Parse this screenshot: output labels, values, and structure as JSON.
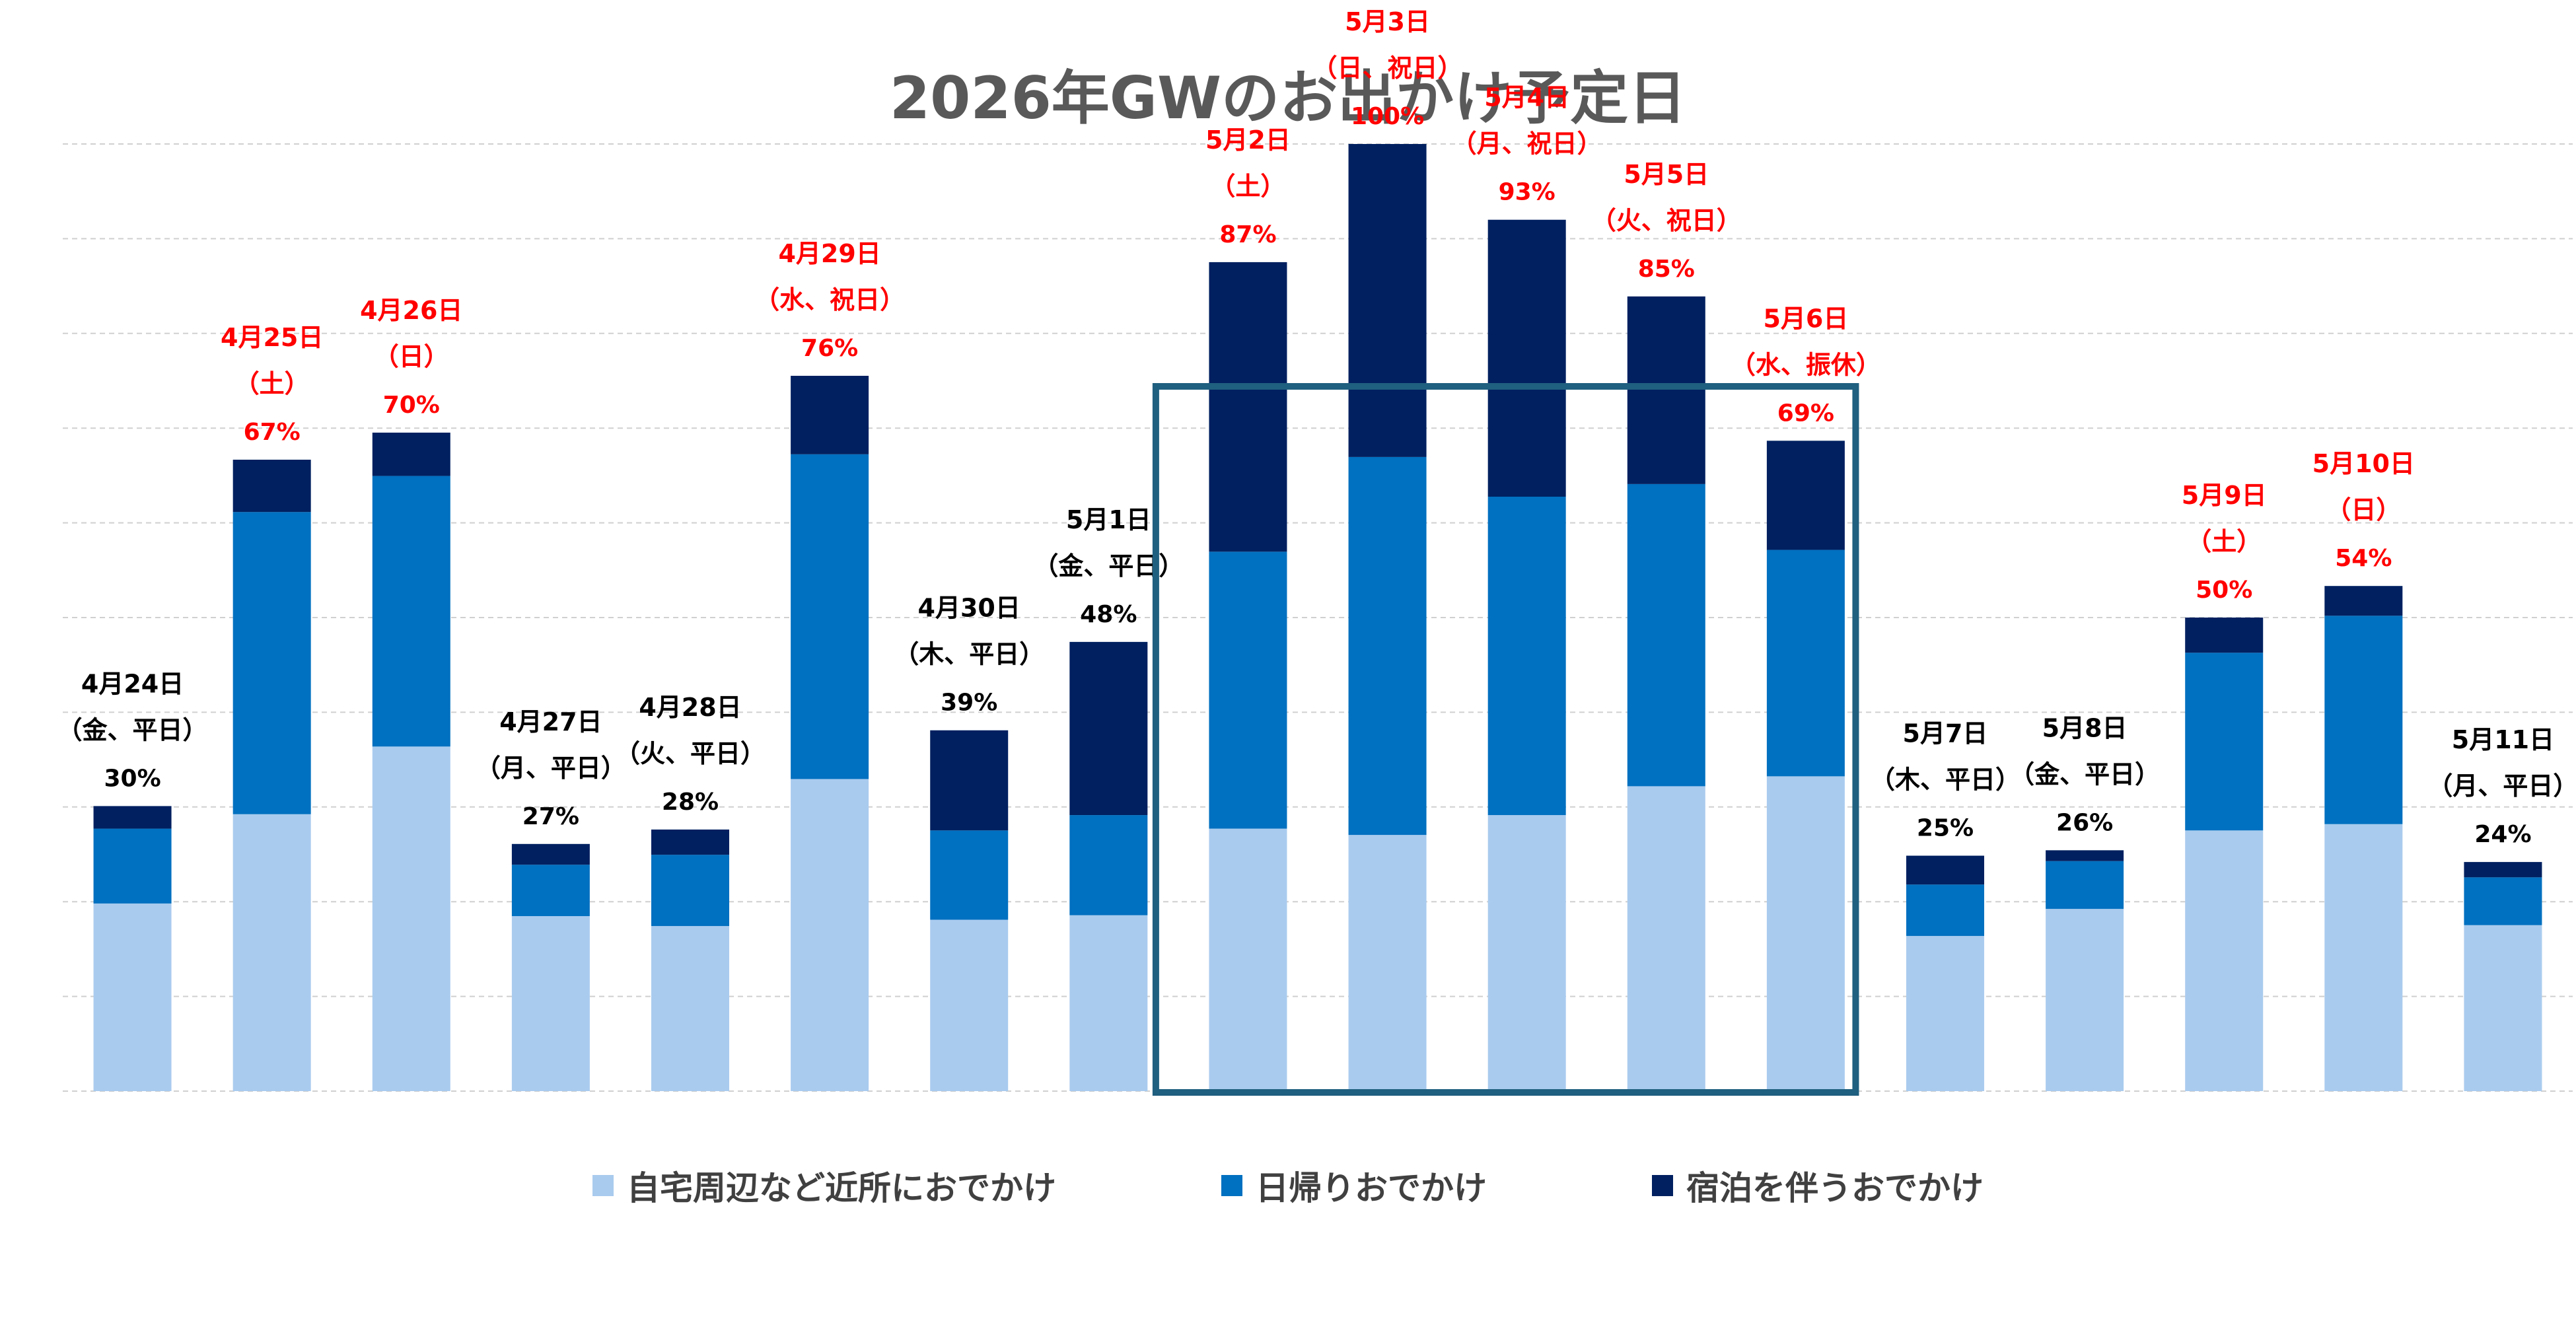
{
  "chart_data": {
    "type": "bar",
    "stacked": true,
    "title": "2026年GWのお出かけ予定日",
    "grid": true,
    "legend_position": "bottom",
    "ylim": [
      0,
      105
    ],
    "categories": [
      {
        "date": "4月24日",
        "day": "（金、平日）",
        "pct": "30%",
        "highlight": false
      },
      {
        "date": "4月25日",
        "day": "（土）",
        "pct": "67%",
        "highlight": true
      },
      {
        "date": "4月26日",
        "day": "（日）",
        "pct": "70%",
        "highlight": true
      },
      {
        "date": "4月27日",
        "day": "（月、平日）",
        "pct": "27%",
        "highlight": false
      },
      {
        "date": "4月28日",
        "day": "（火、平日）",
        "pct": "28%",
        "highlight": false
      },
      {
        "date": "4月29日",
        "day": "（水、祝日）",
        "pct": "76%",
        "highlight": true
      },
      {
        "date": "4月30日",
        "day": "（木、平日）",
        "pct": "39%",
        "highlight": false
      },
      {
        "date": "5月1日",
        "day": "（金、平日）",
        "pct": "48%",
        "highlight": false
      },
      {
        "date": "5月2日",
        "day": "（土）",
        "pct": "87%",
        "highlight": true
      },
      {
        "date": "5月3日",
        "day": "（日、祝日）",
        "pct": "100%",
        "highlight": true
      },
      {
        "date": "5月4日",
        "day": "（月、祝日）",
        "pct": "93%",
        "highlight": true
      },
      {
        "date": "5月5日",
        "day": "（火、祝日）",
        "pct": "85%",
        "highlight": true
      },
      {
        "date": "5月6日",
        "day": "（水、振休）",
        "pct": "69%",
        "highlight": true
      },
      {
        "date": "5月7日",
        "day": "（木、平日）",
        "pct": "25%",
        "highlight": false
      },
      {
        "date": "5月8日",
        "day": "（金、平日）",
        "pct": "26%",
        "highlight": false
      },
      {
        "date": "5月9日",
        "day": "（土）",
        "pct": "50%",
        "highlight": true
      },
      {
        "date": "5月10日",
        "day": "（日）",
        "pct": "54%",
        "highlight": true
      },
      {
        "date": "5月11日",
        "day": "（月、平日）",
        "pct": "24%",
        "highlight": false
      }
    ],
    "series": [
      {
        "name": "自宅周辺など近所におでかけ",
        "color": "#A9CBEE",
        "values": [
          20.8,
          30.7,
          38.2,
          19.4,
          18.3,
          34.6,
          19.0,
          19.5,
          29.1,
          28.4,
          30.6,
          33.8,
          34.9,
          17.2,
          20.2,
          28.9,
          29.6,
          18.4
        ]
      },
      {
        "name": "日帰りおでかけ",
        "color": "#0070C0",
        "values": [
          8.3,
          33.5,
          30.0,
          5.7,
          7.9,
          36.0,
          9.9,
          11.1,
          30.7,
          41.9,
          35.3,
          33.5,
          25.1,
          5.7,
          5.3,
          19.7,
          23.1,
          5.3
        ]
      },
      {
        "name": "宿泊を伴うおでかけ",
        "color": "#002060",
        "values": [
          2.5,
          5.8,
          4.8,
          2.3,
          2.8,
          8.7,
          11.1,
          19.2,
          32.1,
          34.7,
          30.7,
          20.8,
          12.1,
          3.2,
          1.2,
          3.9,
          3.3,
          1.7
        ]
      }
    ],
    "highlight_group": {
      "from": 8,
      "to": 12,
      "border_color": "#1F5F7F"
    },
    "label_colors": {
      "highlight": "#FF0000",
      "normal": "#000000",
      "grid": "#D0D0D0"
    }
  }
}
